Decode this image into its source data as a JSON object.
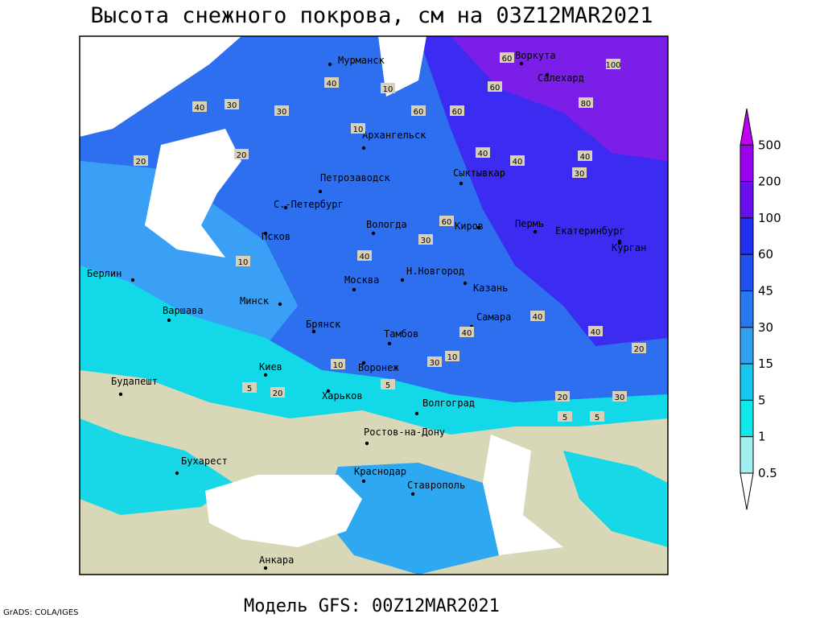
{
  "title": "Высота снежного покрова, см на 03Z12MAR2021",
  "footer": "Модель GFS: 00Z12MAR2021",
  "credit": "GrADS: COLA/IGES",
  "legend_levels": [
    500,
    200,
    100,
    60,
    45,
    30,
    15,
    5,
    1,
    0.5
  ],
  "cities": [
    "Мурманск",
    "Воркута",
    "Салехард",
    "Архангельск",
    "Сыктывкар",
    "Петрозаводск",
    "С.-Петербург",
    "Вологда",
    "Киров",
    "Пермь",
    "Екатеринбург",
    "Курган",
    "Псков",
    "Берлин",
    "Москва",
    "Н.Новгород",
    "Казань",
    "Минск",
    "Варшава",
    "Брянск",
    "Тамбов",
    "Самара",
    "Киев",
    "Воронеж",
    "Будапешт",
    "Харьков",
    "Волгоград",
    "Ростов-на-Дону",
    "Бухарест",
    "Краснодар",
    "Ставрополь",
    "Анкара"
  ],
  "contour_labels": [
    60,
    100,
    80,
    60,
    60,
    60,
    40,
    40,
    30,
    30,
    20,
    20,
    10,
    10,
    40,
    40,
    40,
    40,
    60,
    30,
    30,
    20,
    20,
    10,
    10,
    5,
    5,
    5,
    5,
    40,
    40,
    40,
    30,
    30,
    20,
    10
  ]
}
